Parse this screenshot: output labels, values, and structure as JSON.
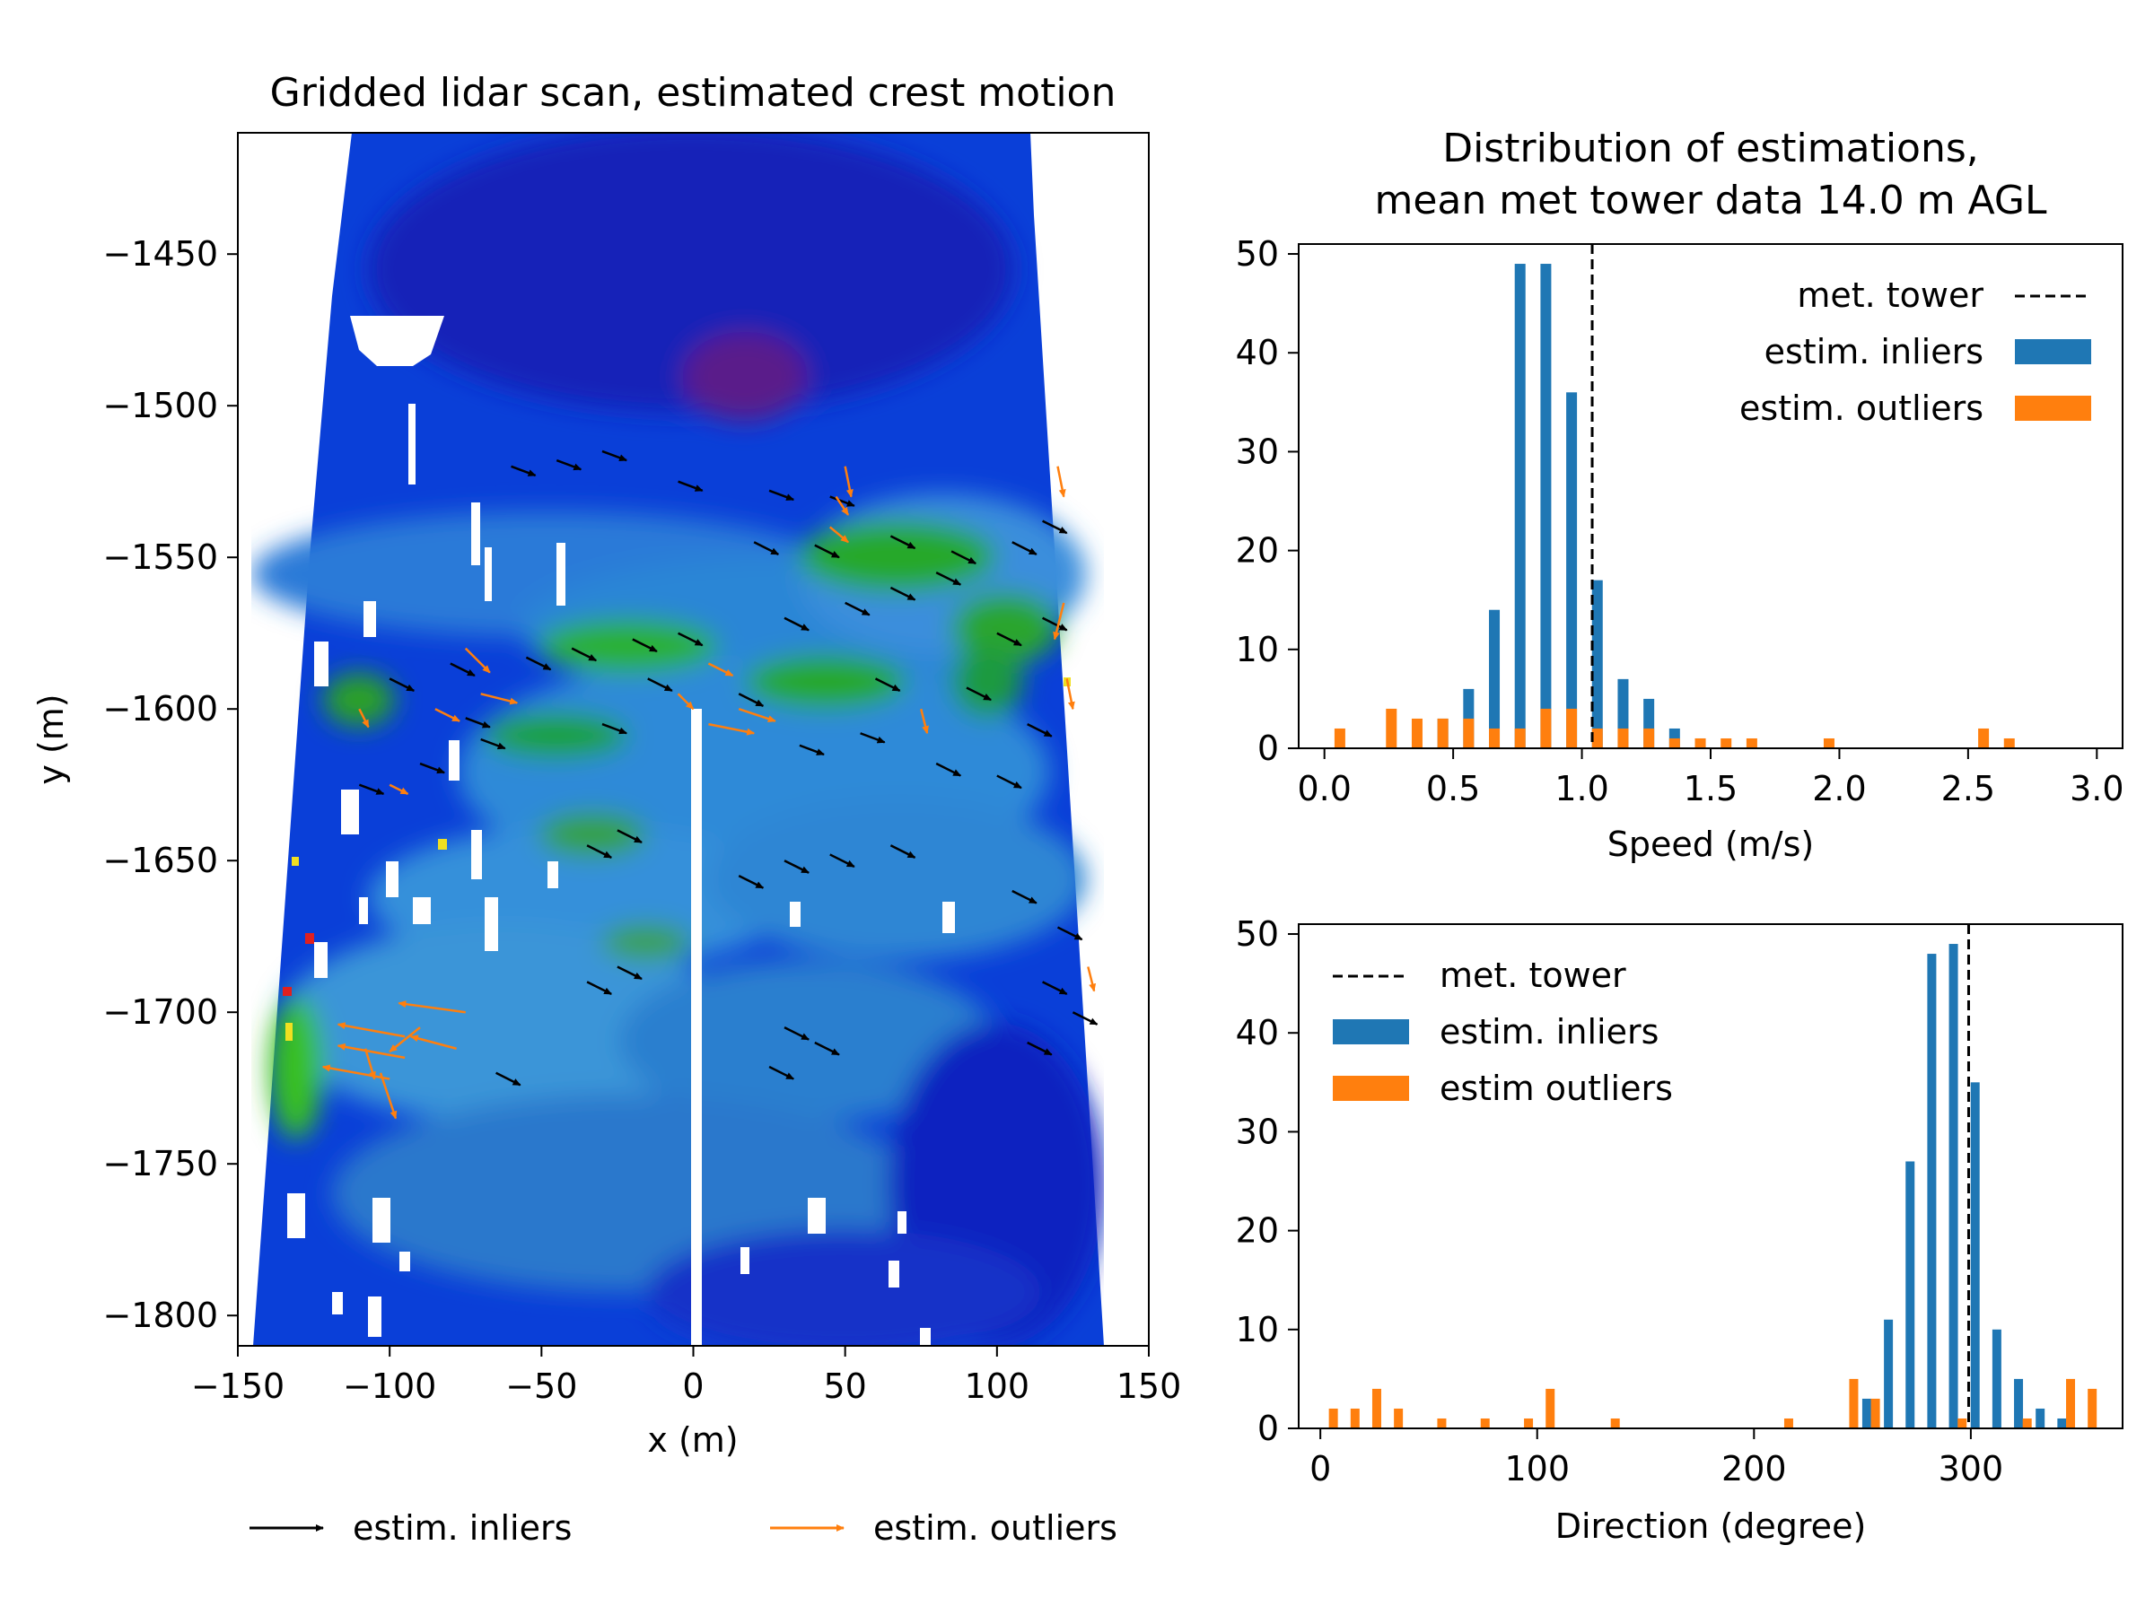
{
  "chart_data": [
    {
      "type": "scatter",
      "title": "Gridded lidar scan, estimated crest motion",
      "xlabel": "x (m)",
      "ylabel": "y (m)",
      "xlim": [
        -150,
        150
      ],
      "ylim": [
        -1810,
        -1410
      ],
      "xticks": [
        -150,
        -100,
        -50,
        0,
        50,
        100,
        150
      ],
      "yticks": [
        -1800,
        -1750,
        -1700,
        -1650,
        -1600,
        -1550,
        -1500,
        -1450
      ],
      "legend": {
        "placement": "below",
        "entries": [
          "estim. inliers",
          "estim. outliers"
        ]
      },
      "series": [
        {
          "name": "estim. inliers",
          "color": "#000000",
          "vectors": [
            [
              -60,
              -1520,
              8,
              -3
            ],
            [
              -45,
              -1518,
              8,
              -3
            ],
            [
              -30,
              -1515,
              8,
              -3
            ],
            [
              -5,
              -1525,
              8,
              -3
            ],
            [
              25,
              -1528,
              8,
              -3
            ],
            [
              45,
              -1530,
              8,
              -3
            ],
            [
              20,
              -1545,
              8,
              -4
            ],
            [
              40,
              -1546,
              8,
              -4
            ],
            [
              65,
              -1543,
              8,
              -4
            ],
            [
              85,
              -1548,
              8,
              -4
            ],
            [
              105,
              -1545,
              8,
              -4
            ],
            [
              115,
              -1538,
              8,
              -4
            ],
            [
              -100,
              -1590,
              8,
              -4
            ],
            [
              -80,
              -1585,
              8,
              -4
            ],
            [
              -55,
              -1583,
              8,
              -4
            ],
            [
              -40,
              -1580,
              8,
              -4
            ],
            [
              -20,
              -1577,
              8,
              -4
            ],
            [
              -5,
              -1575,
              8,
              -4
            ],
            [
              30,
              -1570,
              8,
              -4
            ],
            [
              50,
              -1565,
              8,
              -4
            ],
            [
              65,
              -1560,
              8,
              -4
            ],
            [
              80,
              -1555,
              8,
              -4
            ],
            [
              100,
              -1575,
              8,
              -4
            ],
            [
              115,
              -1570,
              8,
              -4
            ],
            [
              -15,
              -1590,
              8,
              -4
            ],
            [
              15,
              -1595,
              8,
              -4
            ],
            [
              60,
              -1590,
              8,
              -4
            ],
            [
              90,
              -1593,
              8,
              -4
            ],
            [
              -110,
              -1625,
              8,
              -3
            ],
            [
              -90,
              -1618,
              8,
              -3
            ],
            [
              -70,
              -1610,
              8,
              -3
            ],
            [
              -30,
              -1605,
              8,
              -3
            ],
            [
              35,
              -1612,
              8,
              -3
            ],
            [
              55,
              -1608,
              8,
              -3
            ],
            [
              110,
              -1605,
              8,
              -4
            ],
            [
              80,
              -1618,
              8,
              -4
            ],
            [
              100,
              -1622,
              8,
              -4
            ],
            [
              -75,
              -1603,
              8,
              -3
            ],
            [
              -35,
              -1645,
              8,
              -4
            ],
            [
              -25,
              -1640,
              8,
              -4
            ],
            [
              15,
              -1655,
              8,
              -4
            ],
            [
              30,
              -1650,
              8,
              -4
            ],
            [
              45,
              -1648,
              8,
              -4
            ],
            [
              65,
              -1645,
              8,
              -4
            ],
            [
              105,
              -1660,
              8,
              -4
            ],
            [
              120,
              -1672,
              8,
              -4
            ],
            [
              115,
              -1690,
              8,
              -4
            ],
            [
              -35,
              -1690,
              8,
              -4
            ],
            [
              -25,
              -1685,
              8,
              -4
            ],
            [
              -65,
              -1720,
              8,
              -4
            ],
            [
              25,
              -1718,
              8,
              -4
            ],
            [
              40,
              -1710,
              8,
              -4
            ],
            [
              30,
              -1705,
              8,
              -4
            ],
            [
              110,
              -1710,
              8,
              -4
            ],
            [
              125,
              -1700,
              8,
              -4
            ]
          ]
        },
        {
          "name": "estim. outliers",
          "color": "#ff7f0e",
          "vectors": [
            [
              50,
              -1520,
              2,
              -10
            ],
            [
              45,
              -1540,
              6,
              -5
            ],
            [
              47,
              -1530,
              4,
              -6
            ],
            [
              120,
              -1520,
              2,
              -10
            ],
            [
              122,
              -1565,
              -3,
              -12
            ],
            [
              123,
              -1590,
              2,
              -10
            ],
            [
              -75,
              -1580,
              8,
              -8
            ],
            [
              -110,
              -1600,
              3,
              -6
            ],
            [
              -100,
              -1625,
              6,
              -3
            ],
            [
              -85,
              -1600,
              8,
              -4
            ],
            [
              -70,
              -1595,
              12,
              -3
            ],
            [
              5,
              -1585,
              8,
              -4
            ],
            [
              -5,
              -1595,
              5,
              -5
            ],
            [
              5,
              -1605,
              15,
              -3
            ],
            [
              15,
              -1600,
              12,
              -4
            ],
            [
              75,
              -1600,
              2,
              -8
            ],
            [
              -95,
              -1708,
              -22,
              4
            ],
            [
              -95,
              -1715,
              -22,
              4
            ],
            [
              -100,
              -1722,
              -22,
              4
            ],
            [
              -75,
              -1700,
              -22,
              3
            ],
            [
              -90,
              -1705,
              -10,
              -8
            ],
            [
              -103,
              -1720,
              5,
              -15
            ],
            [
              -108,
              -1712,
              3,
              -10
            ],
            [
              130,
              -1685,
              2,
              -8
            ],
            [
              -78,
              -1712,
              -15,
              4
            ]
          ]
        }
      ]
    },
    {
      "type": "bar",
      "title": "Distribution of estimations,\nmean met tower data 14.0 m AGL",
      "xlabel": "Speed (m/s)",
      "ylabel": "",
      "xlim": [
        -0.1,
        3.1
      ],
      "ylim": [
        0,
        51
      ],
      "xticks": [
        0.0,
        0.5,
        1.0,
        1.5,
        2.0,
        2.5,
        3.0
      ],
      "yticks": [
        0,
        10,
        20,
        30,
        40,
        50
      ],
      "legend": {
        "placement": "top-right",
        "entries": [
          "met. tower",
          "estim. inliers",
          "estim. outliers"
        ]
      },
      "reference_line": {
        "name": "met. tower",
        "x": 1.04
      },
      "series": [
        {
          "name": "estim. inliers",
          "color": "#1f77b4",
          "x": [
            0.46,
            0.56,
            0.66,
            0.76,
            0.86,
            0.96,
            1.06,
            1.16,
            1.26,
            1.36,
            1.46
          ],
          "values": [
            3,
            6,
            14,
            49,
            49,
            36,
            17,
            7,
            5,
            2,
            1
          ]
        },
        {
          "name": "estim. outliers",
          "color": "#ff7f0e",
          "x": [
            0.06,
            0.26,
            0.36,
            0.46,
            0.56,
            0.66,
            0.76,
            0.86,
            0.96,
            1.06,
            1.16,
            1.26,
            1.36,
            1.46,
            1.56,
            1.66,
            1.96,
            2.56,
            2.66
          ],
          "values": [
            2,
            4,
            3,
            3,
            3,
            2,
            2,
            4,
            4,
            2,
            2,
            2,
            1,
            1,
            1,
            1,
            1,
            2,
            1
          ]
        }
      ]
    },
    {
      "type": "bar",
      "title": "",
      "xlabel": "Direction (degree)",
      "ylabel": "",
      "xlim": [
        -10,
        370
      ],
      "ylim": [
        0,
        51
      ],
      "xticks": [
        0,
        100,
        200,
        300
      ],
      "yticks": [
        0,
        10,
        20,
        30,
        40,
        50
      ],
      "legend": {
        "placement": "top-left",
        "entries": [
          "met. tower",
          "estim. inliers",
          "estim outliers"
        ]
      },
      "reference_line": {
        "name": "met. tower",
        "x": 299
      },
      "series": [
        {
          "name": "estim. inliers",
          "color": "#1f77b4",
          "x": [
            252,
            262,
            272,
            282,
            292,
            302,
            312,
            322,
            332,
            342
          ],
          "values": [
            3,
            11,
            27,
            48,
            49,
            35,
            10,
            5,
            2,
            1
          ]
        },
        {
          "name": "estim outliers",
          "color": "#ff7f0e",
          "x": [
            6,
            16,
            26,
            36,
            56,
            76,
            96,
            106,
            136,
            216,
            246,
            256,
            296,
            326,
            346,
            356
          ],
          "values": [
            2,
            2,
            4,
            2,
            1,
            1,
            1,
            4,
            1,
            1,
            5,
            3,
            1,
            1,
            5,
            4
          ]
        }
      ]
    }
  ]
}
